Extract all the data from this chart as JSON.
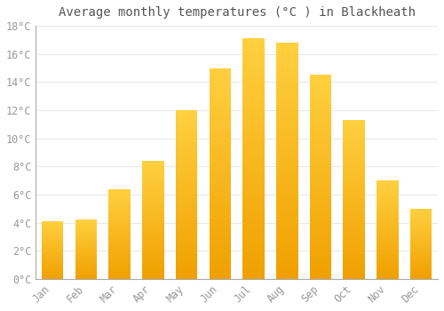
{
  "title": "Average monthly temperatures (°C ) in Blackheath",
  "months": [
    "Jan",
    "Feb",
    "Mar",
    "Apr",
    "May",
    "Jun",
    "Jul",
    "Aug",
    "Sep",
    "Oct",
    "Nov",
    "Dec"
  ],
  "values": [
    4.1,
    4.2,
    6.4,
    8.4,
    12.0,
    15.0,
    17.1,
    16.8,
    14.5,
    11.3,
    7.0,
    5.0
  ],
  "bar_color_bottom": "#F0A000",
  "bar_color_top": "#FFD040",
  "background_color": "#FFFFFF",
  "grid_color": "#E8E8E8",
  "axis_color": "#AAAAAA",
  "ylim": [
    0,
    18
  ],
  "yticks": [
    0,
    2,
    4,
    6,
    8,
    10,
    12,
    14,
    16,
    18
  ],
  "title_fontsize": 10,
  "tick_fontsize": 8.5,
  "font_family": "monospace",
  "tick_color": "#999999"
}
